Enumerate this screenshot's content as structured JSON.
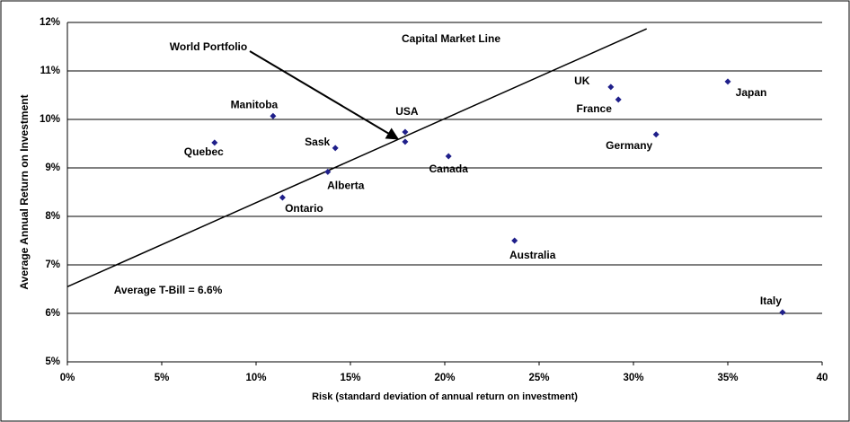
{
  "chart_data": {
    "type": "scatter",
    "xlabel": "Risk (standard deviation of annual return on investment)",
    "ylabel": "Average Annual Return on Investment",
    "xlim": [
      0,
      40
    ],
    "xticks": [
      {
        "value": 0,
        "label": "0%"
      },
      {
        "value": 5,
        "label": "5%"
      },
      {
        "value": 10,
        "label": "10%"
      },
      {
        "value": 15,
        "label": "15%"
      },
      {
        "value": 20,
        "label": "20%"
      },
      {
        "value": 25,
        "label": "25%"
      },
      {
        "value": 30,
        "label": "30%"
      },
      {
        "value": 35,
        "label": "35%"
      },
      40
    ],
    "ylim": [
      5,
      12
    ],
    "yticks": [
      {
        "value": 5,
        "label": "5%"
      },
      {
        "value": 6,
        "label": "6%"
      },
      {
        "value": 7,
        "label": "7%"
      },
      {
        "value": 8,
        "label": "8%"
      },
      {
        "value": 9,
        "label": "9%"
      },
      {
        "value": 10,
        "label": "10%"
      },
      {
        "value": 11,
        "label": "11%"
      },
      {
        "value": 12,
        "label": "12%"
      }
    ],
    "grid": true,
    "color": "#1f1f8a",
    "point_labels": [
      "Quebec",
      "Manitoba",
      "Sask",
      "Alberta",
      "Ontario",
      "USA",
      null,
      "Canada",
      "Australia",
      "UK",
      "France",
      "Germany",
      "Japan",
      "Italy"
    ],
    "x": [
      7.8,
      10.9,
      14.2,
      13.8,
      11.4,
      17.9,
      17.9,
      20.2,
      23.7,
      28.8,
      29.2,
      31.2,
      35.0,
      37.9
    ],
    "values": [
      9.52,
      10.07,
      9.41,
      8.92,
      8.39,
      9.74,
      9.54,
      9.24,
      7.5,
      10.67,
      10.41,
      9.69,
      10.78,
      6.02
    ],
    "capital_market_line": {
      "x": [
        0,
        30.7
      ],
      "y": [
        6.55,
        11.87
      ]
    },
    "annotations": {
      "line_label": "Capital Market Line",
      "world_portfolio": "World Portfolio",
      "t_bill": "Average T-Bill = 6.6%"
    }
  }
}
